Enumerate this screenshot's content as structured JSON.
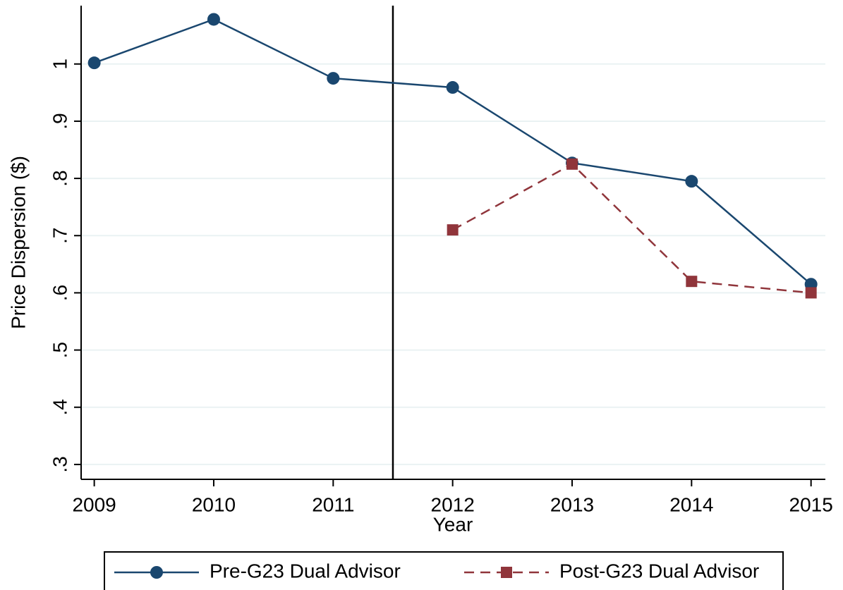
{
  "chart_data": {
    "type": "line",
    "x_label": "Year",
    "y_label": "Price Dispersion ($)",
    "x": [
      2009,
      2010,
      2011,
      2012,
      2013,
      2014,
      2015
    ],
    "series": [
      {
        "name": "Pre-G23 Dual Advisor",
        "color": "#1a476f",
        "dash": "solid",
        "marker": "circle",
        "values": [
          1.002,
          1.078,
          0.975,
          0.959,
          0.827,
          0.795,
          0.615
        ]
      },
      {
        "name": "Post-G23 Dual Advisor",
        "color": "#90353b",
        "dash": "dashed",
        "marker": "square",
        "values": [
          null,
          null,
          null,
          0.71,
          0.825,
          0.62,
          0.6
        ]
      }
    ],
    "xlim": [
      2008.89,
      2015.12
    ],
    "ylim": [
      0.274,
      1.102
    ],
    "xticks": [
      2009,
      2010,
      2011,
      2012,
      2013,
      2014,
      2015
    ],
    "yticks": [
      {
        "value": 0.3,
        "label": ".3"
      },
      {
        "value": 0.4,
        "label": ".4"
      },
      {
        "value": 0.5,
        "label": ".5"
      },
      {
        "value": 0.6,
        "label": ".6"
      },
      {
        "value": 0.7,
        "label": ".7"
      },
      {
        "value": 0.8,
        "label": ".8"
      },
      {
        "value": 0.9,
        "label": ".9"
      },
      1
    ],
    "vline": 2011.5,
    "grid": true,
    "legend_position": "bottom"
  }
}
